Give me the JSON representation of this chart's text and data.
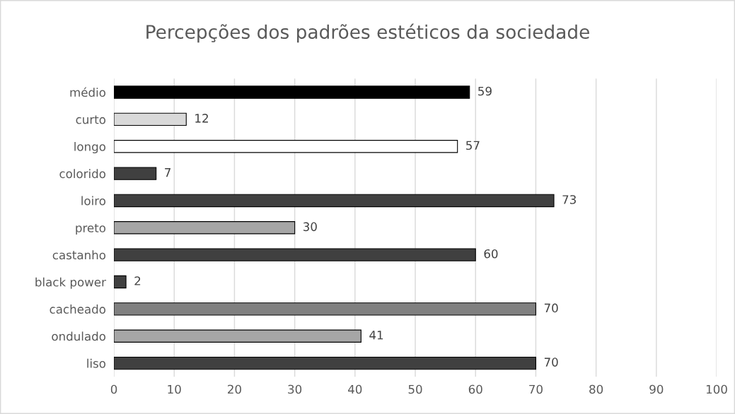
{
  "chart_data": {
    "type": "bar",
    "orientation": "horizontal",
    "title": "Percepções dos padrões estéticos da sociedade",
    "categories": [
      "médio",
      "curto",
      "longo",
      "colorido",
      "loiro",
      "preto",
      "castanho",
      "black power",
      "cacheado",
      "ondulado",
      "liso"
    ],
    "values": [
      59,
      12,
      57,
      7,
      73,
      30,
      60,
      2,
      70,
      41,
      70
    ],
    "colors": [
      "#000000",
      "#d9d9d9",
      "#ffffff",
      "#404040",
      "#404040",
      "#a6a6a6",
      "#404040",
      "#404040",
      "#808080",
      "#a6a6a6",
      "#404040"
    ],
    "xlim": [
      0,
      100
    ],
    "xticks": [
      0,
      10,
      20,
      30,
      40,
      50,
      60,
      70,
      80,
      90,
      100
    ],
    "grid": "x",
    "data_labels": true
  }
}
